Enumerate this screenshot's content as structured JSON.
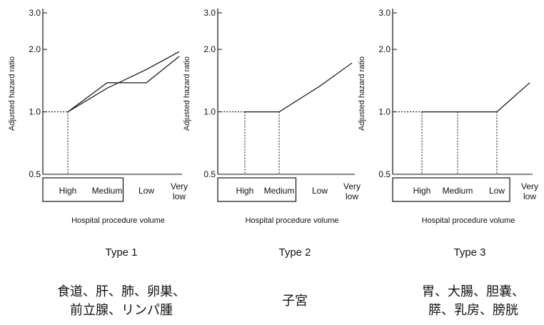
{
  "chart_data": [
    {
      "type": "line",
      "title": "Type 1",
      "caption": [
        "食道、肝、肺、卵巣、",
        "前立腺、リンパ腫"
      ],
      "xlabel": "Hospital procedure volume",
      "ylabel": "Adjusted hazard ratio",
      "categories": [
        "High",
        "Medium",
        "Low",
        "Very low"
      ],
      "boxed_categories": [
        "High",
        "Medium"
      ],
      "y_scale": "log",
      "ylim": [
        0.5,
        3.0
      ],
      "yticks": [
        0.5,
        1.0,
        2.0,
        3.0
      ],
      "reference_line": 1.0,
      "series": [
        {
          "values": [
            1.0,
            1.38,
            1.38,
            1.85
          ]
        },
        {
          "values": [
            1.0,
            1.3,
            1.6,
            1.95
          ]
        }
      ]
    },
    {
      "type": "line",
      "title": "Type 2",
      "caption": [
        "子宮"
      ],
      "xlabel": "Hospital procedure volume",
      "ylabel": "Adjusted hazard ratio",
      "categories": [
        "High",
        "Medium",
        "Low",
        "Very low"
      ],
      "boxed_categories": [
        "High",
        "Medium"
      ],
      "y_scale": "log",
      "ylim": [
        0.5,
        3.0
      ],
      "yticks": [
        0.5,
        1.0,
        2.0,
        3.0
      ],
      "reference_line": 1.0,
      "series": [
        {
          "values": [
            1.0,
            1.0,
            1.33,
            1.72
          ]
        }
      ]
    },
    {
      "type": "line",
      "title": "Type 3",
      "caption": [
        "胃、大腸、胆嚢、",
        "膵、乳房、膀胱"
      ],
      "xlabel": "Hospital procedure volume",
      "ylabel": "Adjusted hazard ratio",
      "categories": [
        "High",
        "Medium",
        "Low",
        "Very low"
      ],
      "boxed_categories": [
        "High",
        "Medium",
        "Low"
      ],
      "y_scale": "log",
      "ylim": [
        0.5,
        3.0
      ],
      "yticks": [
        0.5,
        1.0,
        2.0,
        3.0
      ],
      "reference_line": 1.0,
      "series": [
        {
          "values": [
            1.0,
            1.0,
            1.0,
            1.38
          ]
        }
      ]
    }
  ]
}
